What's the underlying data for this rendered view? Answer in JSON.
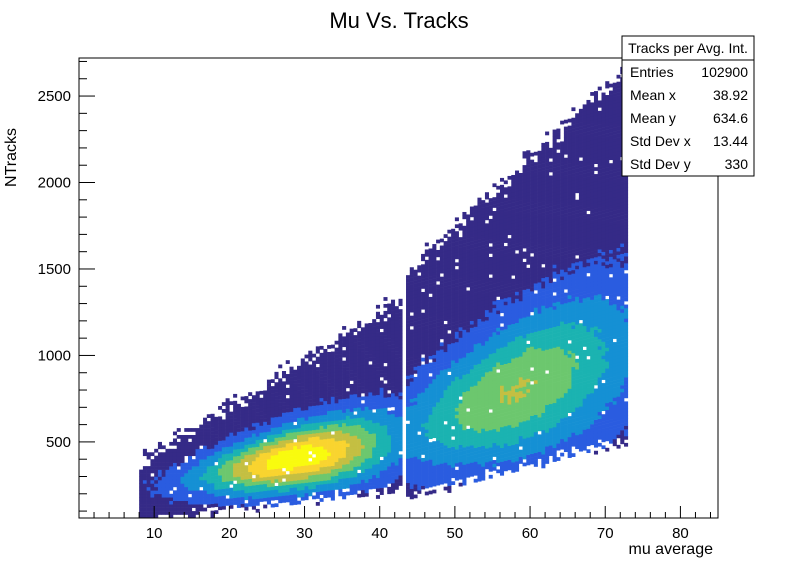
{
  "chart_data": {
    "type": "heatmap",
    "title": "Mu Vs. Tracks",
    "xlabel": "mu average",
    "ylabel": "NTracks",
    "xlim": [
      0,
      85
    ],
    "ylim": [
      60,
      2720
    ],
    "x_ticks": [
      10,
      20,
      30,
      40,
      50,
      60,
      70,
      80
    ],
    "y_ticks": [
      500,
      1000,
      1500,
      2000,
      2500
    ],
    "grid": false,
    "colormap": [
      "#352a87",
      "#2a5ce0",
      "#1590d4",
      "#1bb3b1",
      "#6cc76e",
      "#c4bf42",
      "#f9d42f",
      "#f9fb0e"
    ],
    "density_regions": [
      {
        "x_range": [
          8,
          43
        ],
        "y_at_x_start": [
          95,
          320
        ],
        "y_at_x_end": [
          270,
          1270
        ],
        "peak": [
          28,
          410
        ],
        "notes": "low-mu band"
      },
      {
        "x_range": [
          44,
          73
        ],
        "y_at_x_start": [
          230,
          1450
        ],
        "y_at_x_end": [
          560,
          2620
        ],
        "notes": "high-mu band"
      }
    ],
    "gap_x_range": [
      42.8,
      43.6
    ],
    "stats_box": {
      "name": "Tracks per Avg. Int.",
      "entries": [
        {
          "label": "Entries",
          "value": "102900"
        },
        {
          "label": "Mean x",
          "value": "38.92"
        },
        {
          "label": "Mean y",
          "value": "634.6"
        },
        {
          "label": "Std Dev x",
          "value": "13.44"
        },
        {
          "label": "Std Dev y",
          "value": "330"
        }
      ]
    }
  }
}
